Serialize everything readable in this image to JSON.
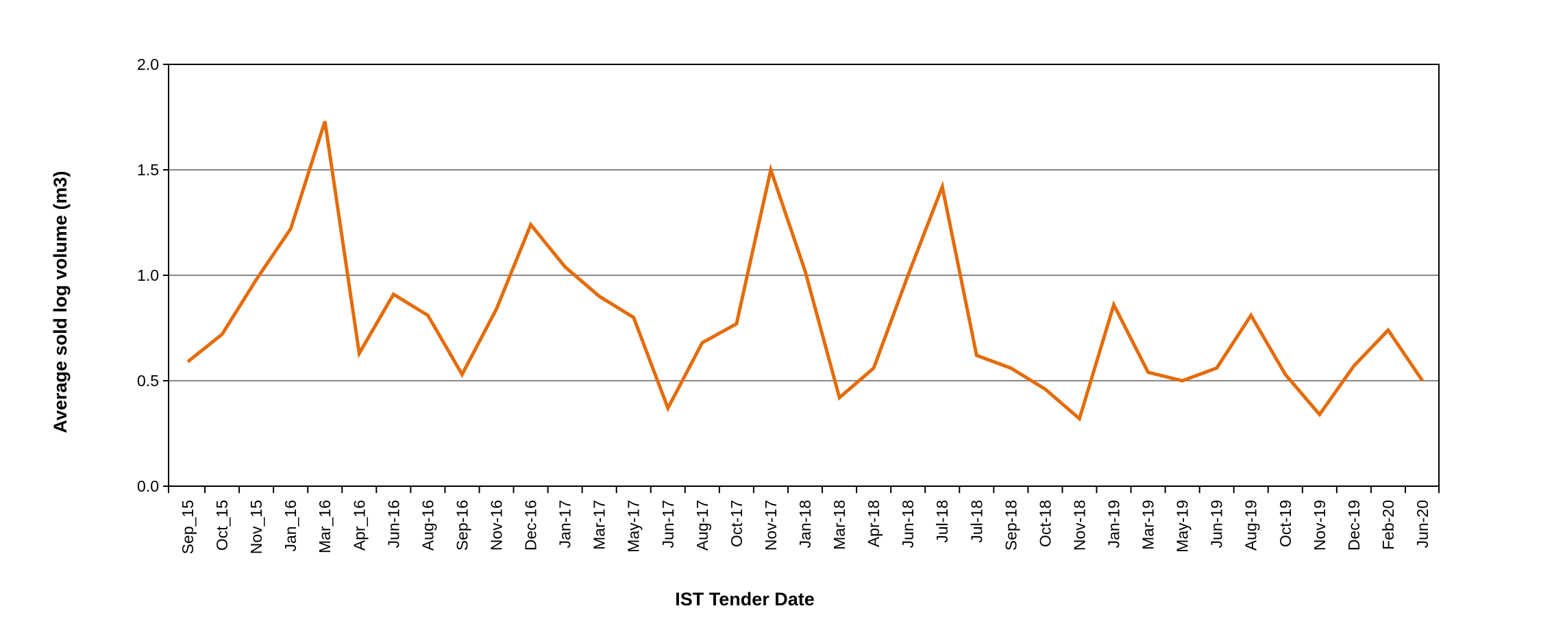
{
  "chart_data": {
    "type": "line",
    "title": "",
    "xlabel": "IST Tender Date",
    "ylabel": "Average sold log volume (m3)",
    "ylim": [
      0,
      2
    ],
    "yticks": [
      "0.0",
      "0.5",
      "1.0",
      "1.5",
      "2.0"
    ],
    "grid": true,
    "legend": "none",
    "categories": [
      "Sep_15",
      "Oct_15",
      "Nov_15",
      "Jan_16",
      "Mar_16",
      "Apr_16",
      "Jun-16",
      "Aug-16",
      "Sep-16",
      "Nov-16",
      "Dec-16",
      "Jan-17",
      "Mar-17",
      "May-17",
      "Jun-17",
      "Aug-17",
      "Oct-17",
      "Nov-17",
      "Jan-18",
      "Mar-18",
      "Apr-18",
      "Jun-18",
      "Jul-18",
      "Jul-18",
      "Sep-18",
      "Oct-18",
      "Nov-18",
      "Jan-19",
      "Mar-19",
      "May-19",
      "Jun-19",
      "Aug-19",
      "Oct-19",
      "Nov-19",
      "Dec-19",
      "Feb-20",
      "Jun-20"
    ],
    "series": [
      {
        "values": [
          0.59,
          0.72,
          0.98,
          1.22,
          1.73,
          0.63,
          0.91,
          0.81,
          0.53,
          0.84,
          1.24,
          1.04,
          0.9,
          0.8,
          0.37,
          0.68,
          0.77,
          1.5,
          1.02,
          0.42,
          0.56,
          1.0,
          1.42,
          0.62,
          0.56,
          0.46,
          0.32,
          0.86,
          0.54,
          0.5,
          0.56,
          0.81,
          0.53,
          0.34,
          0.57,
          0.74,
          0.5
        ],
        "color": "#E46C0A"
      }
    ]
  }
}
